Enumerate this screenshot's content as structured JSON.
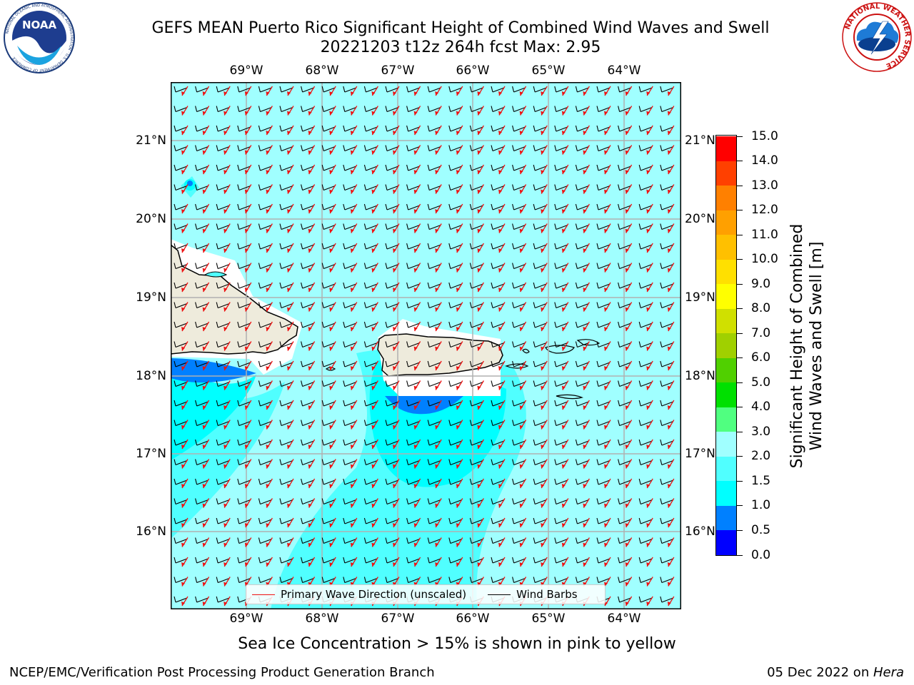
{
  "header": {
    "line1": "GEFS MEAN Puerto Rico Significant Height of Combined Wind Waves and Swell",
    "line2": "20221203 t12z 264h fcst   Max: 2.95"
  },
  "logos": {
    "noaa_text": "NOAA",
    "noaa_ring": "NATIONAL OCEANIC AND ATMOSPHERIC ADMINISTRATION · U.S. DEPARTMENT OF COMMERCE",
    "nws_ring": "NATIONAL WEATHER SERVICE"
  },
  "map": {
    "lon_labels": [
      "69°W",
      "68°W",
      "67°W",
      "66°W",
      "65°W",
      "64°W"
    ],
    "lat_labels": [
      "21°N",
      "20°N",
      "19°N",
      "18°N",
      "17°N",
      "16°N"
    ],
    "colors": {
      "ocean_light": "#A0FFFF",
      "ocean_mid": "#50FFFF",
      "ocean_deep": "#00FFFF",
      "wave_low": "#0080FF",
      "land": "#EEEBDC",
      "arrow": "#EE1111",
      "barb": "#000000"
    }
  },
  "legend": {
    "wave_dir": "Primary Wave Direction (unscaled)",
    "wind_barbs": "Wind Barbs"
  },
  "colorbar": {
    "title_line1": "Significant Height of Combined",
    "title_line2": "Wind Waves and Swell [m]",
    "ticks": [
      "0.0",
      "0.5",
      "1.0",
      "1.5",
      "2.0",
      "3.0",
      "4.0",
      "5.0",
      "6.0",
      "7.0",
      "8.0",
      "9.0",
      "10.0",
      "11.0",
      "12.0",
      "13.0",
      "14.0",
      "15.0"
    ],
    "colors": [
      "#0000FF",
      "#0080FF",
      "#00FFFF",
      "#50FFFF",
      "#A0FFFF",
      "#50FF80",
      "#00E000",
      "#50D000",
      "#A0D000",
      "#D0E000",
      "#FFFF00",
      "#FFE000",
      "#FFC000",
      "#FFA000",
      "#FF8000",
      "#FF4000",
      "#FF0000"
    ]
  },
  "notes": {
    "sea_ice": "Sea Ice Concentration > 15% is shown in pink to yellow",
    "footer_left": "NCEP/EMC/Verification Post Processing Product Generation Branch",
    "footer_date": "05 Dec 2022 on ",
    "footer_host": "Hera"
  }
}
